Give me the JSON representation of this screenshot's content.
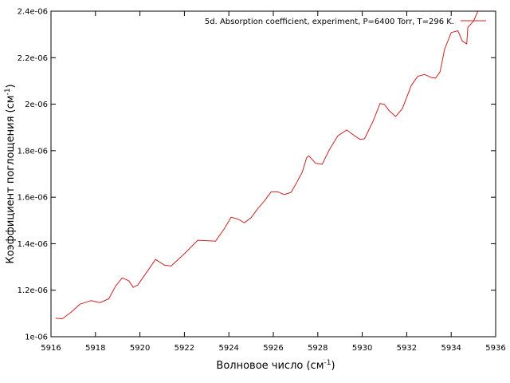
{
  "chart_data": {
    "type": "line",
    "xlabel_main": "Волновое число (см",
    "xlabel_sup": "-1",
    "xlabel_tail": ")",
    "ylabel_main": "Коэффициент поглощения (см",
    "ylabel_sup": "-1",
    "ylabel_tail": ")",
    "xlim": [
      5916,
      5936
    ],
    "ylim": [
      1e-06,
      2.4e-06
    ],
    "x_ticks": [
      5916,
      5918,
      5920,
      5922,
      5924,
      5926,
      5928,
      5930,
      5932,
      5934,
      5936
    ],
    "x_tick_labels": [
      "5916",
      "5918",
      "5920",
      "5922",
      "5924",
      "5926",
      "5928",
      "5930",
      "5932",
      "5934",
      "5936"
    ],
    "y_ticks": [
      1e-06,
      1.2e-06,
      1.4e-06,
      1.6e-06,
      1.8e-06,
      2e-06,
      2.2e-06,
      2.4e-06
    ],
    "y_tick_labels": [
      "1e-06",
      "1.2e-06",
      "1.4e-06",
      "1.6e-06",
      "1.8e-06",
      "2e-06",
      "2.2e-06",
      "2.4e-06"
    ],
    "legend_position": "top-right",
    "grid": false,
    "series": [
      {
        "name": "5d. Absorption coefficient, experiment, P=6400 Torr, T=296 K.",
        "color": "#cc2222",
        "x": [
          5916.2,
          5916.5,
          5916.9,
          5917.3,
          5917.8,
          5918.2,
          5918.6,
          5918.9,
          5919.2,
          5919.5,
          5919.7,
          5919.9,
          5920.3,
          5920.7,
          5921.1,
          5921.4,
          5922.0,
          5922.6,
          5923.0,
          5923.4,
          5923.8,
          5924.1,
          5924.4,
          5924.7,
          5925.0,
          5925.3,
          5925.6,
          5925.9,
          5926.2,
          5926.5,
          5926.8,
          5927.0,
          5927.3,
          5927.5,
          5927.6,
          5927.9,
          5928.2,
          5928.5,
          5928.9,
          5929.3,
          5929.7,
          5929.9,
          5930.1,
          5930.5,
          5930.8,
          5931.0,
          5931.2,
          5931.5,
          5931.8,
          5932.2,
          5932.5,
          5932.8,
          5933.1,
          5933.3,
          5933.5,
          5933.7,
          5934.0,
          5934.3,
          5934.5,
          5934.7,
          5934.75,
          5935.0,
          5935.2
        ],
        "values": [
          1.08e-06,
          1.077e-06,
          1.105e-06,
          1.14e-06,
          1.155e-06,
          1.147e-06,
          1.163e-06,
          1.217e-06,
          1.253e-06,
          1.241e-06,
          1.212e-06,
          1.222e-06,
          1.277e-06,
          1.332e-06,
          1.308e-06,
          1.304e-06,
          1.357e-06,
          1.415e-06,
          1.413e-06,
          1.411e-06,
          1.465e-06,
          1.514e-06,
          1.506e-06,
          1.49e-06,
          1.512e-06,
          1.551e-06,
          1.584e-06,
          1.623e-06,
          1.623e-06,
          1.611e-06,
          1.621e-06,
          1.654e-06,
          1.708e-06,
          1.77e-06,
          1.778e-06,
          1.746e-06,
          1.742e-06,
          1.801e-06,
          1.864e-06,
          1.889e-06,
          1.861e-06,
          1.849e-06,
          1.851e-06,
          1.93e-06,
          2.003e-06,
          1.999e-06,
          1.973e-06,
          1.947e-06,
          1.98e-06,
          2.08e-06,
          2.12e-06,
          2.128e-06,
          2.115e-06,
          2.112e-06,
          2.14e-06,
          2.235e-06,
          2.308e-06,
          2.316e-06,
          2.272e-06,
          2.259e-06,
          2.331e-06,
          2.356e-06,
          2.4e-06
        ]
      }
    ]
  }
}
